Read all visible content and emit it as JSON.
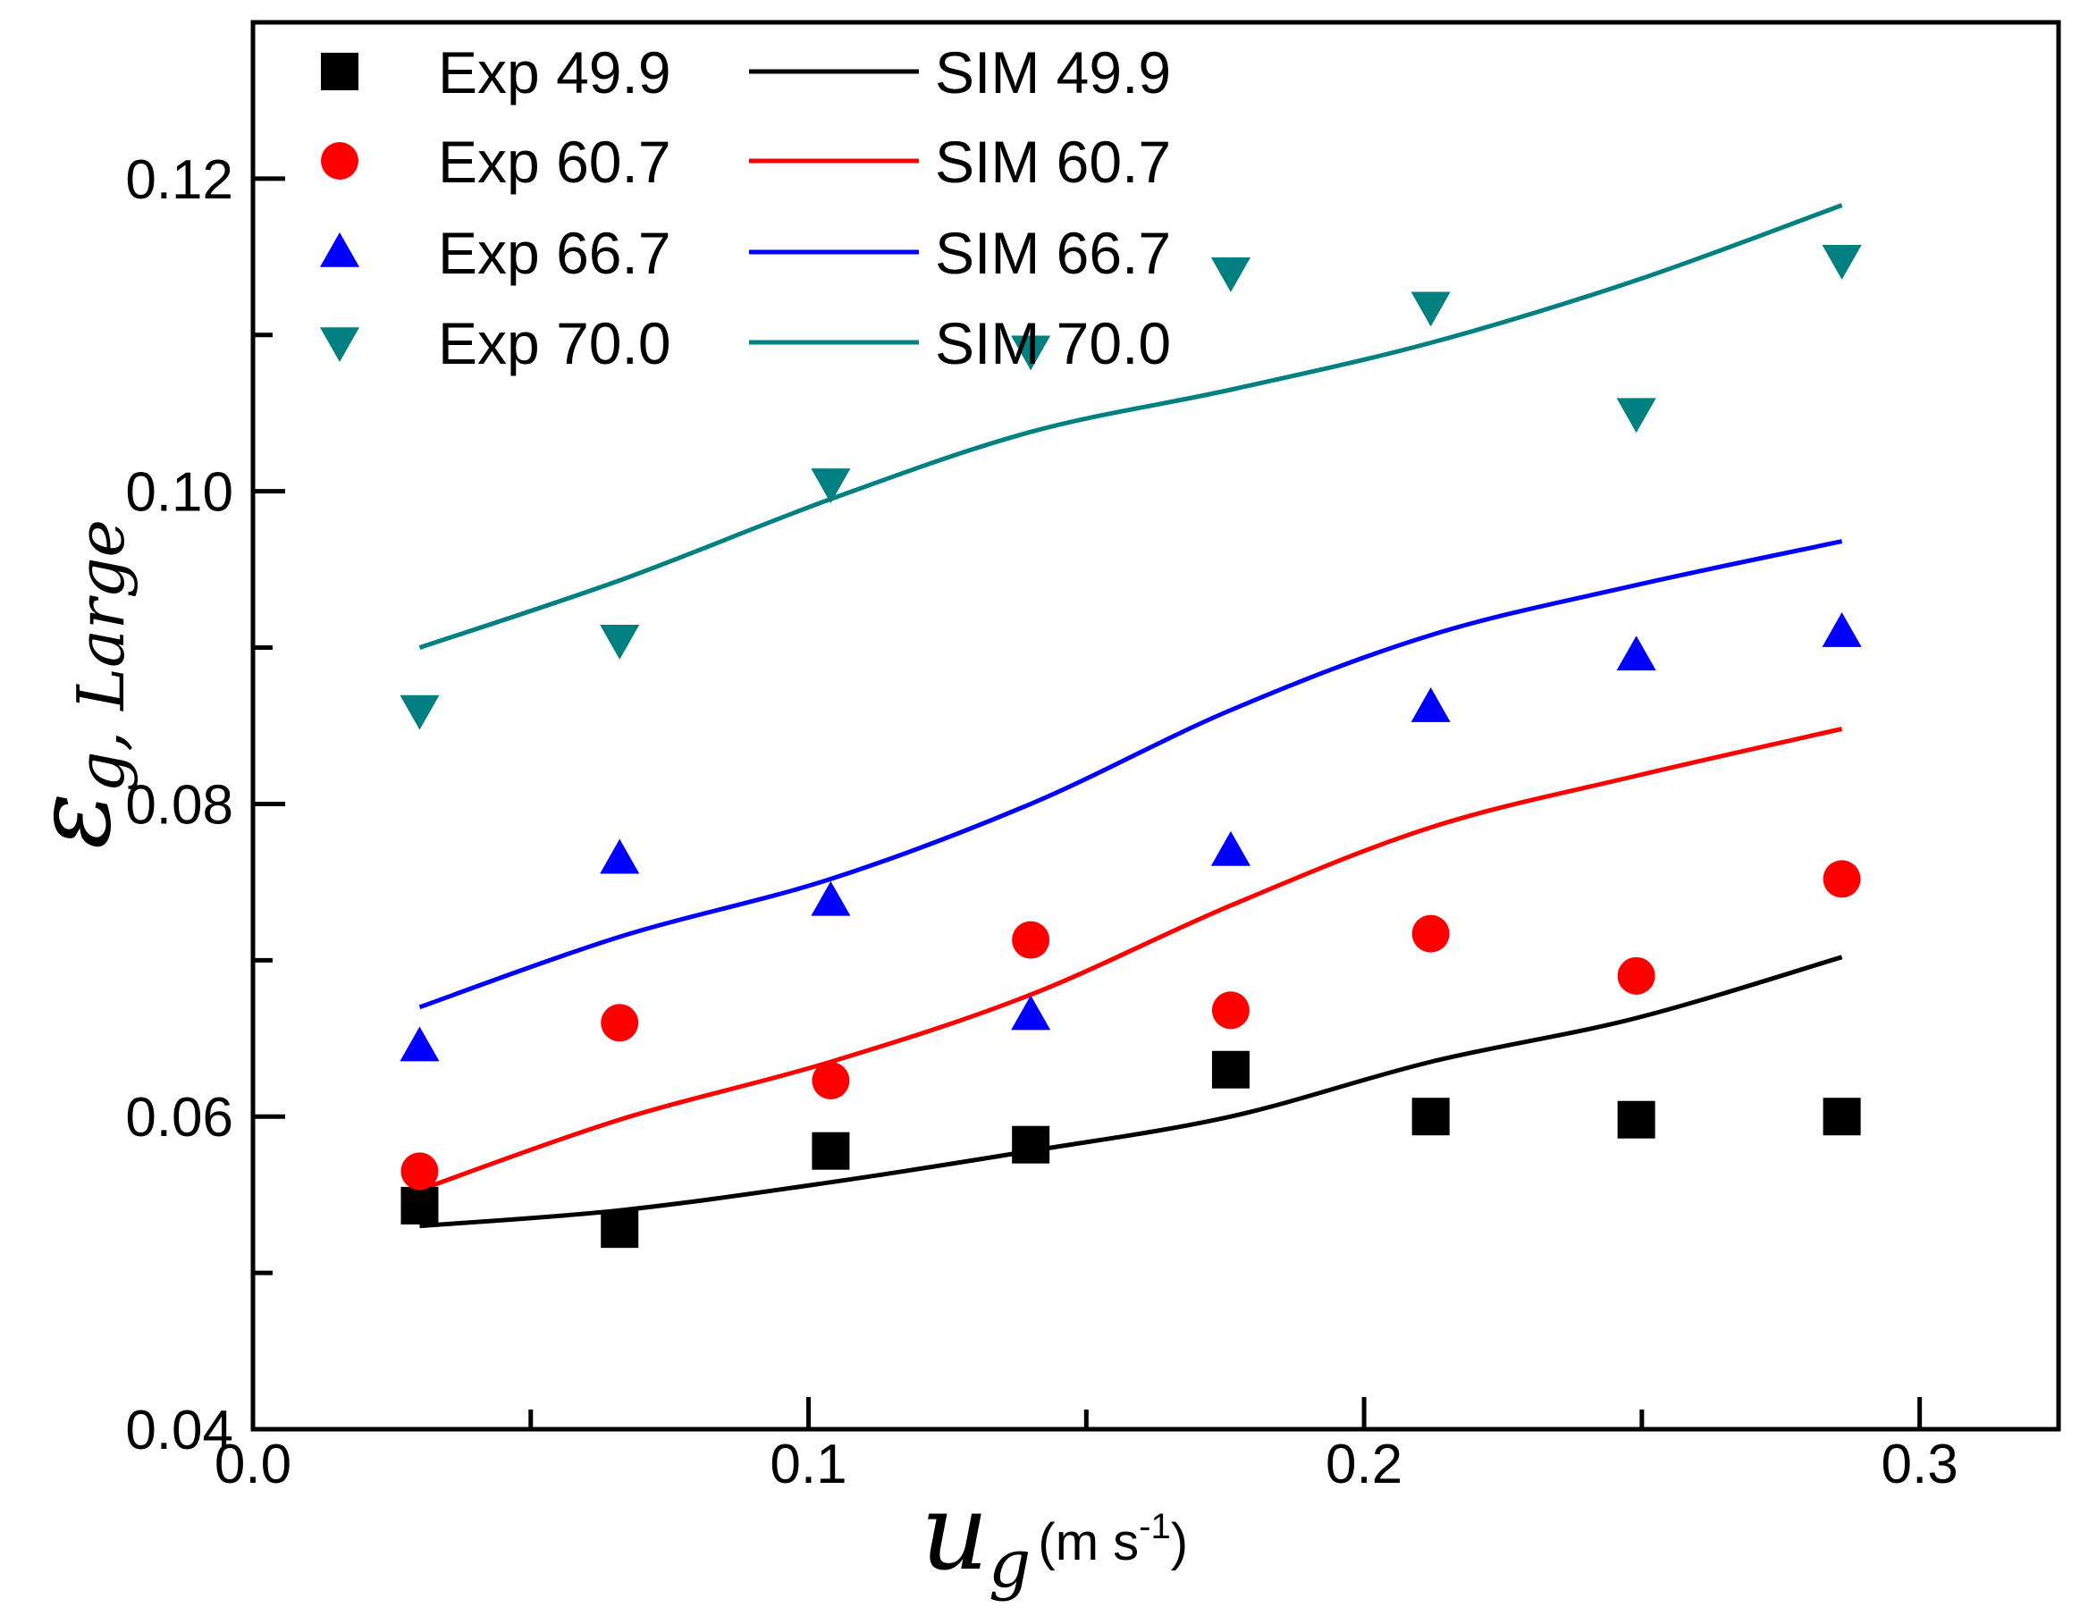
{
  "chart_data": {
    "type": "scatter",
    "xlabel": {
      "symbol": "u",
      "subscript": "g",
      "unit_prefix": "(m s",
      "unit_exp": "-1",
      "unit_suffix": ")"
    },
    "ylabel": {
      "symbol": "ε",
      "subscript": "g, Large"
    },
    "xlim": [
      0.0,
      0.325
    ],
    "ylim": [
      0.04,
      0.13
    ],
    "x_ticks": [
      0.0,
      0.1,
      0.2,
      0.3
    ],
    "x_tick_labels": [
      "0.0",
      "0.1",
      "0.2",
      "0.3"
    ],
    "x_minor_ticks": [
      0.05,
      0.15,
      0.25
    ],
    "y_ticks": [
      0.04,
      0.06,
      0.08,
      0.1,
      0.12
    ],
    "y_tick_labels": [
      "0.04",
      "0.06",
      "0.08",
      "0.10",
      "0.12"
    ],
    "y_minor_ticks": [
      0.05,
      0.07,
      0.09,
      0.11
    ],
    "grid": false,
    "legend_position": "top-left",
    "experimental_series": [
      {
        "name": "Exp 49.9",
        "marker": "square",
        "color": "#000000",
        "x": [
          0.03,
          0.066,
          0.104,
          0.14,
          0.176,
          0.212,
          0.249,
          0.286
        ],
        "y": [
          0.0543,
          0.0528,
          0.0578,
          0.0582,
          0.063,
          0.06,
          0.0598,
          0.06
        ]
      },
      {
        "name": "Exp 60.7",
        "marker": "circle",
        "color": "#ff0000",
        "x": [
          0.03,
          0.066,
          0.104,
          0.14,
          0.176,
          0.212,
          0.249,
          0.286
        ],
        "y": [
          0.0565,
          0.066,
          0.0623,
          0.0713,
          0.0668,
          0.0717,
          0.069,
          0.0752
        ]
      },
      {
        "name": "Exp 66.7",
        "marker": "triangle-up",
        "color": "#0000ff",
        "x": [
          0.03,
          0.066,
          0.104,
          0.14,
          0.176,
          0.212,
          0.249,
          0.286
        ],
        "y": [
          0.0645,
          0.0765,
          0.0738,
          0.0665,
          0.077,
          0.0862,
          0.0895,
          0.091
        ]
      },
      {
        "name": "Exp 70.0",
        "marker": "triangle-down",
        "color": "#008080",
        "x": [
          0.03,
          0.066,
          0.104,
          0.14,
          0.176,
          0.212,
          0.249,
          0.286
        ],
        "y": [
          0.086,
          0.0905,
          0.1005,
          0.109,
          0.114,
          0.1118,
          0.105,
          0.1148
        ]
      }
    ],
    "simulation_series": [
      {
        "name": "SIM 49.9",
        "color": "#000000",
        "x": [
          0.03,
          0.066,
          0.104,
          0.14,
          0.176,
          0.212,
          0.249,
          0.286
        ],
        "y": [
          0.053,
          0.054,
          0.0558,
          0.0578,
          0.06,
          0.0635,
          0.0663,
          0.0702
        ]
      },
      {
        "name": "SIM 60.7",
        "color": "#ff0000",
        "x": [
          0.03,
          0.066,
          0.104,
          0.14,
          0.176,
          0.212,
          0.249,
          0.286
        ],
        "y": [
          0.0553,
          0.0598,
          0.0635,
          0.0678,
          0.0735,
          0.0785,
          0.0818,
          0.0848
        ]
      },
      {
        "name": "SIM 66.7",
        "color": "#0000ff",
        "x": [
          0.03,
          0.066,
          0.104,
          0.14,
          0.176,
          0.212,
          0.249,
          0.286
        ],
        "y": [
          0.067,
          0.0715,
          0.0752,
          0.08,
          0.086,
          0.0908,
          0.094,
          0.0968
        ]
      },
      {
        "name": "SIM 70.0",
        "color": "#008080",
        "x": [
          0.03,
          0.066,
          0.104,
          0.14,
          0.176,
          0.212,
          0.249,
          0.286
        ],
        "y": [
          0.09,
          0.0943,
          0.0995,
          0.1038,
          0.1065,
          0.1095,
          0.1135,
          0.1183
        ]
      }
    ]
  }
}
